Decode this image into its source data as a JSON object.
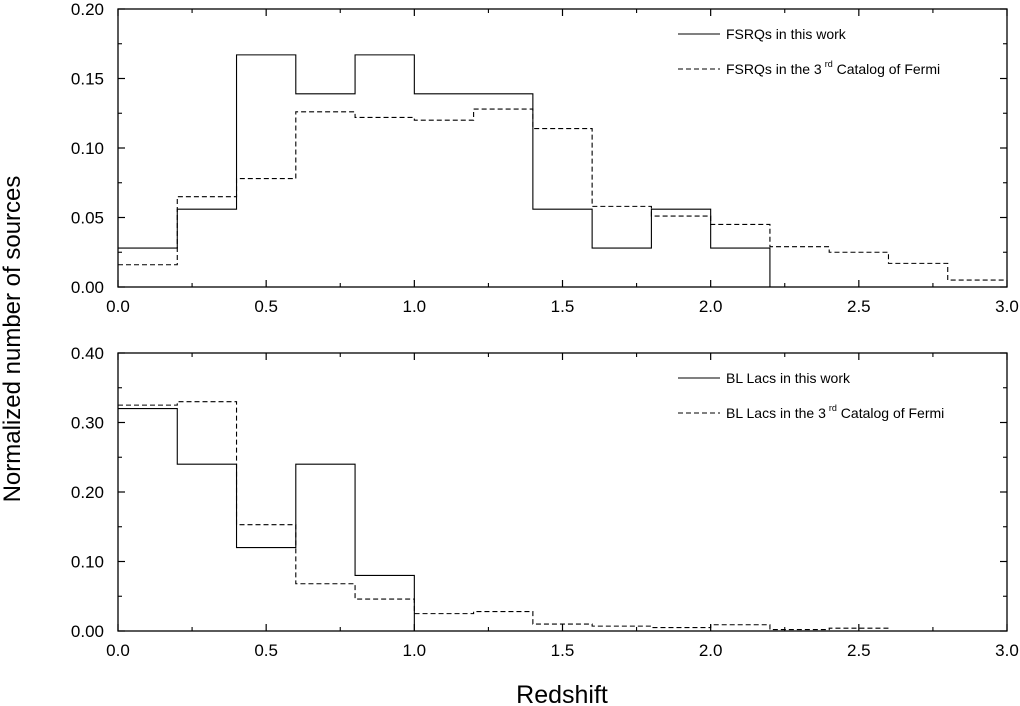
{
  "figure": {
    "ylabel": "Normalized number of sources",
    "xlabel": "Redshift"
  },
  "chart_data": [
    {
      "type": "line",
      "step": true,
      "xlim": [
        0.0,
        3.0
      ],
      "ylim": [
        0.0,
        0.2
      ],
      "xticks": [
        "0.0",
        "0.5",
        "1.0",
        "1.5",
        "2.0",
        "2.5",
        "3.0"
      ],
      "xtick_values": [
        0.0,
        0.5,
        1.0,
        1.5,
        2.0,
        2.5,
        3.0
      ],
      "yticks": [
        "0.00",
        "0.05",
        "0.10",
        "0.15",
        "0.20"
      ],
      "ytick_values": [
        0.0,
        0.05,
        0.1,
        0.15,
        0.2
      ],
      "grid": false,
      "legend_position": "top-right",
      "bin_edges": [
        0.0,
        0.2,
        0.4,
        0.6,
        0.8,
        1.0,
        1.2,
        1.4,
        1.6,
        1.8,
        2.0,
        2.2,
        2.4,
        2.6,
        2.8,
        3.0
      ],
      "series": [
        {
          "name": "FSRQs in this work",
          "style": "solid",
          "values": [
            0.028,
            0.056,
            0.167,
            0.139,
            0.167,
            0.139,
            0.139,
            0.056,
            0.028,
            0.056,
            0.028,
            0.0,
            0.0,
            0.0,
            0.0
          ]
        },
        {
          "name_pre": "FSRQs in the 3",
          "name_sup": "rd",
          "name_post": " Catalog of Fermi",
          "style": "dashed",
          "values": [
            0.016,
            0.065,
            0.078,
            0.126,
            0.122,
            0.12,
            0.128,
            0.114,
            0.058,
            0.051,
            0.045,
            0.029,
            0.025,
            0.017,
            0.005
          ]
        }
      ]
    },
    {
      "type": "line",
      "step": true,
      "xlim": [
        0.0,
        3.0
      ],
      "ylim": [
        0.0,
        0.4
      ],
      "xticks": [
        "0.0",
        "0.5",
        "1.0",
        "1.5",
        "2.0",
        "2.5",
        "3.0"
      ],
      "xtick_values": [
        0.0,
        0.5,
        1.0,
        1.5,
        2.0,
        2.5,
        3.0
      ],
      "yticks": [
        "0.00",
        "0.10",
        "0.20",
        "0.30",
        "0.40"
      ],
      "ytick_values": [
        0.0,
        0.1,
        0.2,
        0.3,
        0.4
      ],
      "grid": false,
      "legend_position": "top-right",
      "bin_edges": [
        0.0,
        0.2,
        0.4,
        0.6,
        0.8,
        1.0,
        1.2,
        1.4,
        1.6,
        1.8,
        2.0,
        2.2,
        2.4,
        2.6,
        2.8,
        3.0
      ],
      "series": [
        {
          "name": "BL Lacs in this work",
          "style": "solid",
          "values": [
            0.32,
            0.24,
            0.12,
            0.24,
            0.08,
            0.0,
            0.0,
            0.0,
            0.0,
            0.0,
            0.0,
            0.0,
            0.0,
            0.0,
            0.0
          ]
        },
        {
          "name_pre": "BL Lacs in the 3",
          "name_sup": "rd",
          "name_post": " Catalog of Fermi",
          "style": "dashed",
          "values": [
            0.325,
            0.33,
            0.153,
            0.068,
            0.046,
            0.025,
            0.028,
            0.01,
            0.007,
            0.005,
            0.009,
            0.002,
            0.004,
            0.0,
            0.0
          ]
        }
      ]
    }
  ]
}
